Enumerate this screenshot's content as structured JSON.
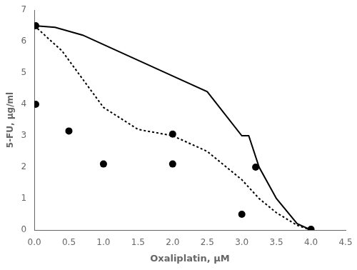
{
  "chart_data": {
    "type": "scatter",
    "xlabel": "Oxaliplatin, μM",
    "ylabel": "5-FU, μg/ml",
    "series": [
      {
        "type": "line",
        "line_style": "solid",
        "color": "#000000",
        "x": [
          0,
          0.3,
          0.7,
          1.0,
          1.5,
          2.0,
          2.5,
          3.0,
          3.1,
          3.25,
          3.5,
          3.8,
          4.0
        ],
        "values": [
          6.5,
          6.45,
          6.2,
          5.9,
          5.4,
          4.9,
          4.4,
          3.0,
          3.0,
          2.0,
          1.0,
          0.2,
          0.0
        ]
      },
      {
        "type": "line",
        "line_style": "dotted",
        "color": "#000000",
        "x": [
          0,
          0.4,
          0.7,
          1.0,
          1.5,
          2.0,
          2.5,
          3.0,
          3.25,
          3.5,
          3.8,
          4.0
        ],
        "values": [
          6.5,
          5.7,
          4.8,
          3.9,
          3.2,
          3.0,
          2.5,
          1.6,
          1.0,
          0.55,
          0.15,
          0.0
        ]
      },
      {
        "type": "scatter",
        "marker": "circle",
        "color": "#000000",
        "x": [
          0.02,
          0.02,
          0.5,
          1.0,
          2.0,
          2.0,
          3.0,
          3.2,
          4.0
        ],
        "values": [
          6.5,
          4.0,
          3.15,
          2.1,
          3.05,
          2.1,
          0.5,
          2.0,
          0.02
        ]
      }
    ],
    "xlim": [
      0,
      4.5
    ],
    "ylim": [
      0,
      7
    ],
    "xticks": [
      {
        "value": 0,
        "label": "0.0"
      },
      0.5,
      {
        "value": 1.0,
        "label": "1.0"
      },
      1.5,
      {
        "value": 2.0,
        "label": "2.0"
      },
      2.5,
      {
        "value": 3.0,
        "label": "3.0"
      },
      3.5,
      {
        "value": 4.0,
        "label": "4.0"
      },
      4.5
    ],
    "yticks": [
      0,
      1,
      2,
      3,
      4,
      5,
      6,
      7
    ],
    "grid": false
  }
}
